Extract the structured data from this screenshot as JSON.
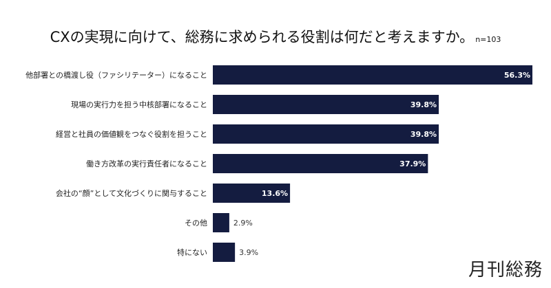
{
  "chart_data": {
    "type": "bar",
    "orientation": "horizontal",
    "title": "CXの実現に向けて、総務に求められる役割は何だと考えますか。",
    "subtitle": "n=103",
    "categories": [
      "他部署との橋渡し役（ファシリテーター）になること",
      "現場の実行力を担う中核部署になること",
      "経営と社員の価値観をつなぐ役割を担うこと",
      "働き方改革の実行責任者になること",
      "会社の“顔”として文化づくりに関与すること",
      "その他",
      "特にない"
    ],
    "values": [
      56.3,
      39.8,
      39.8,
      37.9,
      13.6,
      2.9,
      3.9
    ],
    "value_labels": [
      "56.3%",
      "39.8%",
      "39.8%",
      "37.9%",
      "13.6%",
      "2.9%",
      "3.9%"
    ],
    "unit": "%",
    "grid": false,
    "bar_color": "#141c40"
  },
  "logo": "月刊総務"
}
